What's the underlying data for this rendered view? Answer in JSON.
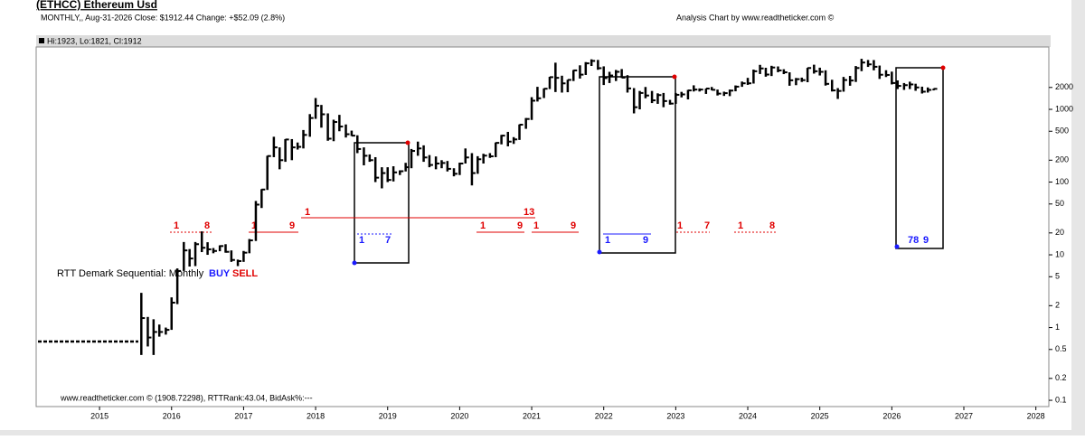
{
  "header": {
    "title": "(ETHCC) Ethereum Usd",
    "info": "MONTHLY,, Aug-31-2026  Close: $1912.44  Change: +$52.09  (2.8%)",
    "credit": "Analysis Chart by www.readtheticker.com ©",
    "last_bar": "Hi:1923, Lo:1821, Cl:1912",
    "footer": "www.readtheticker.com © (1908.72298), RTTRank:43.04, BidAsk%:---"
  },
  "chart_data": {
    "type": "ohlc",
    "log_y": true,
    "color": "#000000",
    "xlim": [
      2014.12,
      2028.18
    ],
    "xticks": [
      2015,
      2016,
      2017,
      2018,
      2019,
      2020,
      2021,
      2022,
      2023,
      2024,
      2025,
      2026,
      2027,
      2028
    ],
    "ylim": [
      0.082,
      7200
    ],
    "yticks": [
      2000,
      1000,
      500,
      200,
      100,
      50,
      20,
      10,
      5,
      2,
      1,
      0.5,
      0.2,
      0.1
    ],
    "x": [
      2015.58,
      2015.67,
      2015.75,
      2015.83,
      2015.92,
      2016,
      2016.08,
      2016.17,
      2016.25,
      2016.33,
      2016.42,
      2016.5,
      2016.58,
      2016.67,
      2016.75,
      2016.83,
      2016.92,
      2017,
      2017.08,
      2017.17,
      2017.25,
      2017.33,
      2017.42,
      2017.5,
      2017.58,
      2017.67,
      2017.75,
      2017.83,
      2017.92,
      2018,
      2018.08,
      2018.17,
      2018.25,
      2018.33,
      2018.42,
      2018.5,
      2018.58,
      2018.67,
      2018.75,
      2018.83,
      2018.92,
      2019,
      2019.08,
      2019.17,
      2019.25,
      2019.33,
      2019.42,
      2019.5,
      2019.58,
      2019.67,
      2019.75,
      2019.83,
      2019.92,
      2020,
      2020.08,
      2020.17,
      2020.25,
      2020.33,
      2020.42,
      2020.5,
      2020.58,
      2020.67,
      2020.75,
      2020.83,
      2020.92,
      2021,
      2021.08,
      2021.17,
      2021.25,
      2021.33,
      2021.42,
      2021.5,
      2021.58,
      2021.67,
      2021.75,
      2021.83,
      2021.92,
      2022,
      2022.08,
      2022.17,
      2022.25,
      2022.33,
      2022.42,
      2022.5,
      2022.58,
      2022.67,
      2022.75,
      2022.83,
      2022.92,
      2023,
      2023.08,
      2023.17,
      2023.25,
      2023.33,
      2023.42,
      2023.5,
      2023.58,
      2023.67,
      2023.75,
      2023.83,
      2023.92,
      2024,
      2024.08,
      2024.17,
      2024.25,
      2024.33,
      2024.42,
      2024.5,
      2024.58,
      2024.67,
      2024.75,
      2024.83,
      2024.92,
      2025,
      2025.08,
      2025.17,
      2025.25,
      2025.33,
      2025.42,
      2025.5,
      2025.58,
      2025.67,
      2025.75,
      2025.83,
      2025.92,
      2026,
      2026.08,
      2026.17,
      2026.25,
      2026.33,
      2026.42,
      2026.5,
      2026.58
    ],
    "high": [
      3.0,
      1.4,
      1.3,
      1.1,
      1.0,
      2.6,
      6.5,
      15,
      12,
      15,
      21,
      14.9,
      12.4,
      13.5,
      14,
      11.5,
      8.6,
      11.3,
      16.5,
      55,
      80,
      230,
      420,
      300,
      390,
      390,
      350,
      520,
      860,
      1430,
      1150,
      880,
      720,
      840,
      620,
      510,
      440,
      300,
      240,
      220,
      160,
      160,
      165,
      145,
      184,
      285,
      360,
      320,
      235,
      225,
      200,
      195,
      155,
      185,
      290,
      250,
      227,
      245,
      250,
      350,
      445,
      490,
      415,
      620,
      760,
      1470,
      2040,
      1940,
      2800,
      4380,
      2900,
      2550,
      3470,
      4030,
      4460,
      4870,
      4780,
      3900,
      3280,
      3480,
      3580,
      2950,
      1960,
      1790,
      2030,
      1790,
      1660,
      1680,
      1350,
      1680,
      1740,
      1850,
      2140,
      1940,
      1930,
      2030,
      1870,
      1750,
      1870,
      2130,
      2410,
      2710,
      3520,
      4090,
      3730,
      3970,
      3890,
      3560,
      3230,
      2700,
      2730,
      3720,
      4110,
      3740,
      3440,
      2550,
      1960,
      2790,
      2880,
      3940,
      4950,
      4770,
      4760,
      4000,
      3450,
      3300,
      2500,
      2300,
      2400,
      2250,
      2050,
      2000,
      1923
    ],
    "low": [
      0.42,
      0.55,
      0.42,
      0.75,
      0.8,
      0.93,
      2.1,
      6,
      6.9,
      7,
      10.9,
      10,
      10.5,
      11.2,
      10.7,
      8,
      7,
      8,
      10.5,
      15.5,
      44,
      78,
      220,
      150,
      190,
      200,
      280,
      290,
      420,
      740,
      560,
      370,
      365,
      500,
      410,
      430,
      250,
      170,
      190,
      100,
      82,
      100,
      102,
      125,
      140,
      155,
      230,
      190,
      160,
      150,
      155,
      140,
      120,
      125,
      180,
      90,
      130,
      180,
      215,
      220,
      330,
      310,
      335,
      380,
      540,
      715,
      1280,
      1430,
      1900,
      1730,
      1700,
      1720,
      2450,
      2650,
      2970,
      3950,
      3500,
      2160,
      2300,
      2450,
      2700,
      1700,
      880,
      1000,
      1420,
      1220,
      1190,
      1070,
      1160,
      1190,
      1460,
      1370,
      1760,
      1760,
      1630,
      1830,
      1550,
      1530,
      1520,
      1770,
      2040,
      2170,
      2260,
      3060,
      2810,
      2870,
      3240,
      3050,
      2110,
      2150,
      2380,
      2360,
      3100,
      2920,
      2120,
      1760,
      1390,
      1750,
      2110,
      2380,
      3350,
      3830,
      3440,
      2620,
      2780,
      2200,
      1900,
      1850,
      1900,
      1800,
      1650,
      1700,
      1821
    ],
    "close": [
      1.35,
      0.73,
      0.87,
      0.87,
      0.93,
      2.2,
      6.0,
      11.5,
      8.9,
      14,
      12.5,
      11.9,
      11.3,
      13.2,
      11,
      8.5,
      8.2,
      10.7,
      15.8,
      49,
      79,
      228,
      300,
      200,
      385,
      300,
      305,
      445,
      760,
      1120,
      855,
      395,
      670,
      580,
      455,
      435,
      285,
      230,
      200,
      115,
      133,
      107,
      136,
      141,
      160,
      268,
      290,
      218,
      172,
      180,
      183,
      152,
      130,
      180,
      218,
      133,
      206,
      231,
      226,
      346,
      435,
      360,
      386,
      615,
      737,
      1315,
      1420,
      1920,
      2770,
      2710,
      2275,
      2540,
      3430,
      3000,
      4290,
      4630,
      3680,
      2690,
      2920,
      3280,
      2730,
      1940,
      1070,
      1680,
      1550,
      1330,
      1570,
      1300,
      1200,
      1585,
      1605,
      1820,
      1870,
      1870,
      1930,
      1855,
      1645,
      1670,
      1810,
      2050,
      2280,
      2280,
      3340,
      3650,
      3010,
      3760,
      3430,
      3230,
      2510,
      2600,
      2520,
      3700,
      3340,
      3280,
      2240,
      1820,
      1790,
      2530,
      2490,
      3700,
      4400,
      4150,
      3850,
      2990,
      2970,
      2300,
      2100,
      2150,
      2200,
      2000,
      1750,
      1850,
      1912.44
    ],
    "annotations": {
      "study": "RTT Demark Sequential: Monthly",
      "buy": "BUY",
      "sell": "SELL",
      "sell_counts": [
        "1",
        "8",
        "1",
        "9",
        "1",
        "13",
        "1",
        "9",
        "1",
        "9",
        "1",
        "7",
        "1",
        "8"
      ],
      "buy_counts": [
        "1",
        "7",
        "1",
        "9",
        "78",
        "9"
      ]
    }
  }
}
